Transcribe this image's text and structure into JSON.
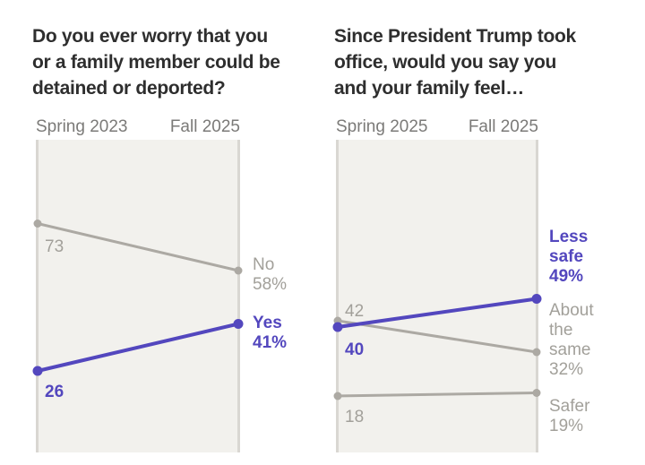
{
  "page": {
    "background": "#ffffff"
  },
  "colors": {
    "accent_purple": "#5347be",
    "line_gray": "#aca9a3",
    "text_gray": "#a2a09a",
    "axis_text": "#7b7a78",
    "title_text": "#2e2e2e",
    "plot_fill": "#f2f1ed",
    "plot_edge": "#d9d7d2"
  },
  "chart_data": [
    {
      "type": "line",
      "variant": "slope",
      "title": "Do you ever worry that you\nor a family member could be\ndetained or deported?",
      "categories": [
        "Spring 2023",
        "Fall 2025"
      ],
      "ylim": [
        0,
        100
      ],
      "grid": false,
      "legend": "inline-end-labels",
      "series": [
        {
          "name": "No",
          "values": [
            73,
            58
          ],
          "color": "#aca9a3",
          "label_color": "#a2a09a",
          "emphasis": false,
          "start_label": "73",
          "end_label": "No\n58%"
        },
        {
          "name": "Yes",
          "values": [
            26,
            41
          ],
          "color": "#5347be",
          "label_color": "#5347be",
          "emphasis": true,
          "start_label": "26",
          "end_label": "Yes\n41%"
        }
      ]
    },
    {
      "type": "line",
      "variant": "slope",
      "title": "Since President Trump took\noffice, would you say you\nand your family feel…",
      "categories": [
        "Spring 2025",
        "Fall 2025"
      ],
      "ylim": [
        0,
        100
      ],
      "grid": false,
      "legend": "inline-end-labels",
      "series": [
        {
          "name": "Less safe",
          "values": [
            40,
            49
          ],
          "color": "#5347be",
          "label_color": "#5347be",
          "emphasis": true,
          "start_label": "40",
          "end_label": "Less\nsafe\n49%"
        },
        {
          "name": "About the same",
          "values": [
            42,
            32
          ],
          "color": "#aca9a3",
          "label_color": "#a2a09a",
          "emphasis": false,
          "start_label": "42",
          "end_label": "About\nthe\nsame\n32%"
        },
        {
          "name": "Safer",
          "values": [
            18,
            19
          ],
          "color": "#aca9a3",
          "label_color": "#a2a09a",
          "emphasis": false,
          "start_label": "18",
          "end_label": "Safer\n19%"
        }
      ]
    }
  ]
}
